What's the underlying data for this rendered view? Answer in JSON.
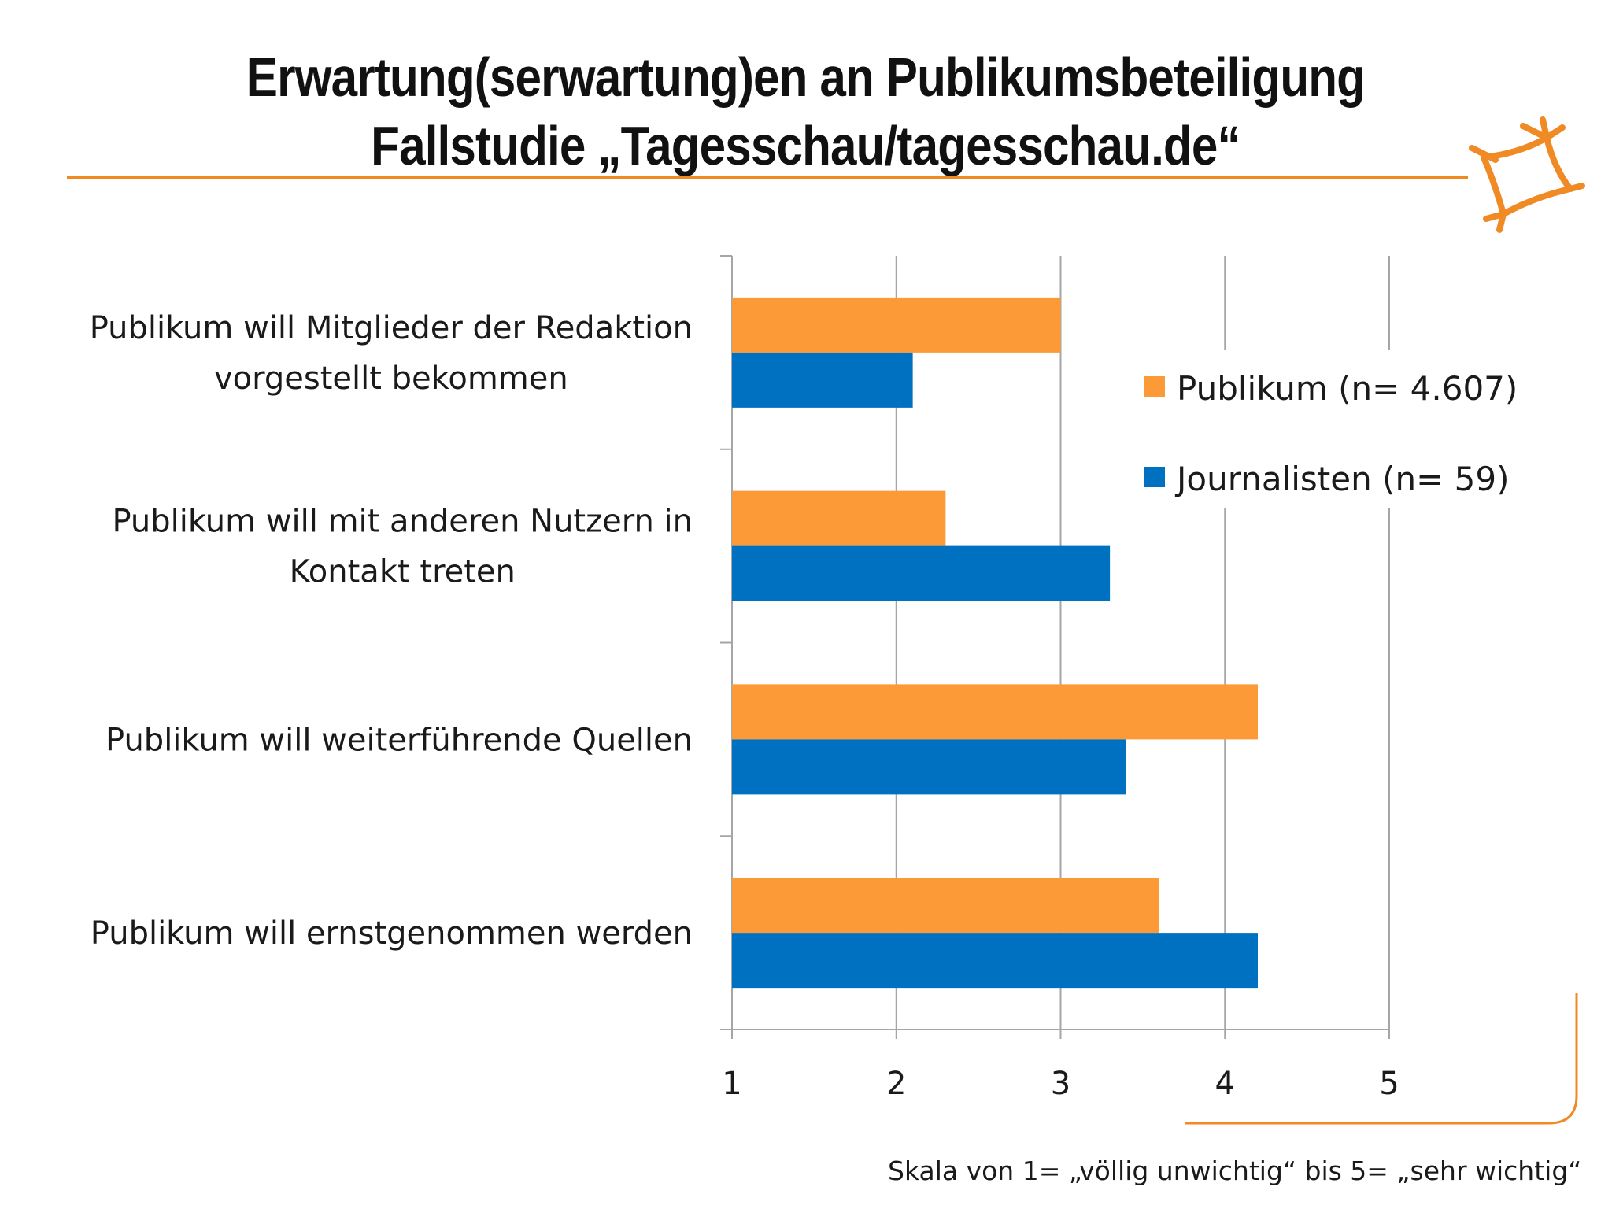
{
  "slide": {
    "title_line1": "Erwartung(serwartung)en an Publikumsbeteiligung",
    "title_line2": "Fallstudie „Tagesschau/tagesschau.de“",
    "scale_note": "Skala von 1= „völlig unwichtig“ bis 5= „sehr wichtig“",
    "logo_icon": "orange-star-frame-icon"
  },
  "colors": {
    "accent": "#f08a24",
    "publikum": "#fd9a38",
    "journalisten": "#0070c0",
    "grid": "#a6a6a6"
  },
  "chart_data": {
    "type": "bar",
    "orientation": "horizontal",
    "categories": [
      [
        "Publikum will Mitglieder der Redaktion",
        "vorgestellt bekommen"
      ],
      [
        "Publikum will mit anderen Nutzern in",
        "Kontakt treten"
      ],
      [
        "Publikum will weiterführende Quellen"
      ],
      [
        "Publikum will ernstgenommen werden"
      ]
    ],
    "series": [
      {
        "name": "Publikum (n= 4.607)",
        "values": [
          3.0,
          2.3,
          4.2,
          3.6
        ]
      },
      {
        "name": "Journalisten (n= 59)",
        "values": [
          2.1,
          3.3,
          3.4,
          4.2
        ]
      }
    ],
    "xlim": [
      1,
      5
    ],
    "xticks": [
      "1",
      "2",
      "3",
      "4",
      "5"
    ],
    "grid": "vertical",
    "legend": "right"
  }
}
